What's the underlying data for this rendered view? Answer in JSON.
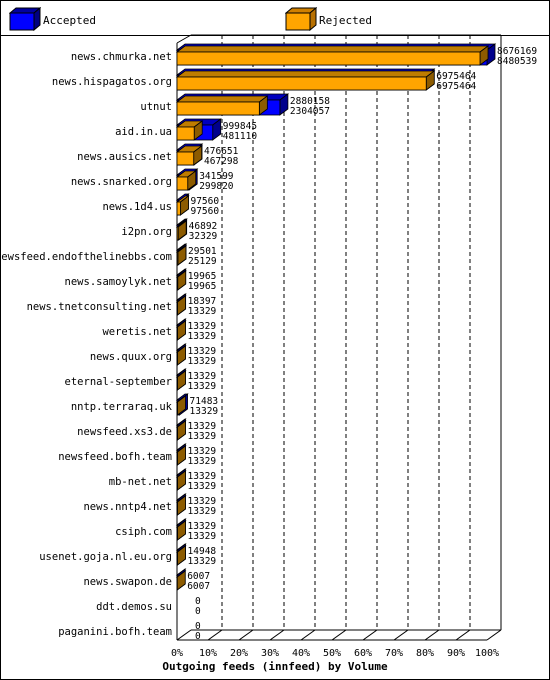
{
  "legend": {
    "accepted_label": "Accepted",
    "rejected_label": "Rejected"
  },
  "colors": {
    "accepted": "#0000ff",
    "rejected": "#ffa500"
  },
  "chart_data": {
    "type": "bar",
    "orientation": "horizontal",
    "style": "3d",
    "xlabel": "Outgoing feeds (innfeed) by Volume",
    "ylabel": "",
    "xlim": [
      0,
      100
    ],
    "x_unit": "%",
    "x_ticks": [
      "0%",
      "10%",
      "20%",
      "30%",
      "40%",
      "50%",
      "60%",
      "70%",
      "80%",
      "90%",
      "100%"
    ],
    "grid": "vertical dashed",
    "legend_position": "top",
    "categories": [
      "news.chmurka.net",
      "news.hispagatos.org",
      "utnut",
      "aid.in.ua",
      "news.ausics.net",
      "news.snarked.org",
      "news.1d4.us",
      "i2pn.org",
      "newsfeed.endofthelinebbs.com",
      "news.samoylyk.net",
      "news.tnetconsulting.net",
      "weretis.net",
      "news.quux.org",
      "eternal-september",
      "nntp.terraraq.uk",
      "newsfeed.xs3.de",
      "newsfeed.bofh.team",
      "mb-net.net",
      "news.nntp4.net",
      "csiph.com",
      "usenet.goja.nl.eu.org",
      "news.swapon.de",
      "ddt.demos.su",
      "paganini.bofh.team"
    ],
    "series": [
      {
        "name": "Accepted",
        "values": [
          8676169,
          6975464,
          2880158,
          999845,
          476651,
          341599,
          97560,
          46892,
          29501,
          19965,
          18397,
          13329,
          13329,
          13329,
          71483,
          13329,
          13329,
          13329,
          13329,
          13329,
          14948,
          6007,
          0,
          0
        ]
      },
      {
        "name": "Rejected",
        "values": [
          8480539,
          6975464,
          2304057,
          481110,
          467298,
          299820,
          97560,
          32329,
          25129,
          19965,
          13329,
          13329,
          13329,
          13329,
          13329,
          13329,
          13329,
          13329,
          13329,
          13329,
          13329,
          6007,
          0,
          0
        ]
      }
    ]
  }
}
